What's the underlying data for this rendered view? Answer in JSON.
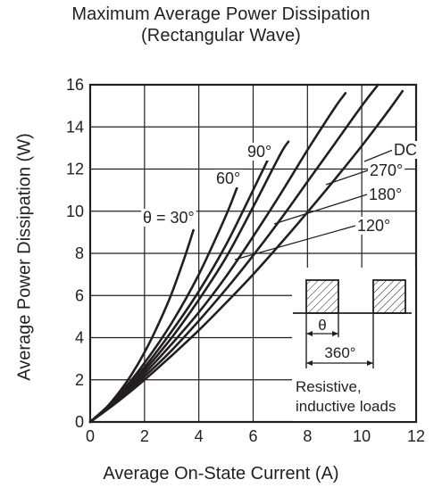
{
  "chart_data": {
    "type": "line",
    "title": "Maximum Average Power Dissipation",
    "subtitle": "(Rectangular Wave)",
    "xlabel": "Average On-State Current  (A)",
    "ylabel": "Average Power Dissipation  (W)",
    "xlim": [
      0,
      12
    ],
    "ylim": [
      0,
      16
    ],
    "x_ticks": [
      "0",
      "2",
      "4",
      "6",
      "8",
      "10",
      "12"
    ],
    "y_ticks": [
      "0",
      "2",
      "4",
      "6",
      "8",
      "10",
      "12",
      "14",
      "16"
    ],
    "grid": true,
    "series": [
      {
        "name": "θ = 30°",
        "x": [
          0,
          0.5,
          1.0,
          1.5,
          2.0,
          2.5,
          3.0,
          3.5,
          3.8
        ],
        "y": [
          0,
          0.55,
          1.3,
          2.2,
          3.3,
          4.6,
          6.1,
          7.9,
          9.1
        ]
      },
      {
        "name": "60°",
        "x": [
          0,
          1,
          2,
          3,
          4,
          5,
          5.4
        ],
        "y": [
          0,
          1.2,
          2.8,
          4.7,
          7.0,
          9.8,
          11.1
        ]
      },
      {
        "name": "90°",
        "x": [
          0,
          1,
          2,
          3,
          4,
          5,
          6,
          6.6
        ],
        "y": [
          0,
          1.15,
          2.6,
          4.3,
          6.2,
          8.4,
          11.0,
          12.6
        ]
      },
      {
        "name": "120°",
        "x": [
          0,
          1,
          2,
          3,
          4,
          5,
          6,
          7,
          7.3
        ],
        "y": [
          0,
          1.1,
          2.45,
          4.0,
          5.8,
          7.8,
          10.2,
          12.7,
          13.3
        ]
      },
      {
        "name": "180°",
        "x": [
          0,
          1,
          2,
          3,
          4,
          5,
          6,
          7,
          8,
          9,
          9.4
        ],
        "y": [
          0,
          1.05,
          2.3,
          3.7,
          5.2,
          6.9,
          8.8,
          10.8,
          12.9,
          14.9,
          15.6
        ]
      },
      {
        "name": "270°",
        "x": [
          0,
          1,
          2,
          3,
          4,
          5,
          6,
          7,
          8,
          9,
          10,
          10.6
        ],
        "y": [
          0,
          1.0,
          2.15,
          3.4,
          4.8,
          6.3,
          7.9,
          9.6,
          11.4,
          13.2,
          15.0,
          16.0
        ]
      },
      {
        "name": "DC",
        "x": [
          0,
          1,
          2,
          3,
          4,
          5,
          6,
          7,
          8,
          9,
          10,
          11,
          11.5
        ],
        "y": [
          0,
          0.95,
          2.0,
          3.15,
          4.35,
          5.65,
          7.0,
          8.45,
          9.95,
          11.5,
          13.1,
          14.8,
          15.7
        ]
      }
    ],
    "annotations": {
      "theta_symbol": "θ",
      "period_label": "360°",
      "load_note_line1": "Resistive,",
      "load_note_line2": "inductive loads"
    }
  }
}
